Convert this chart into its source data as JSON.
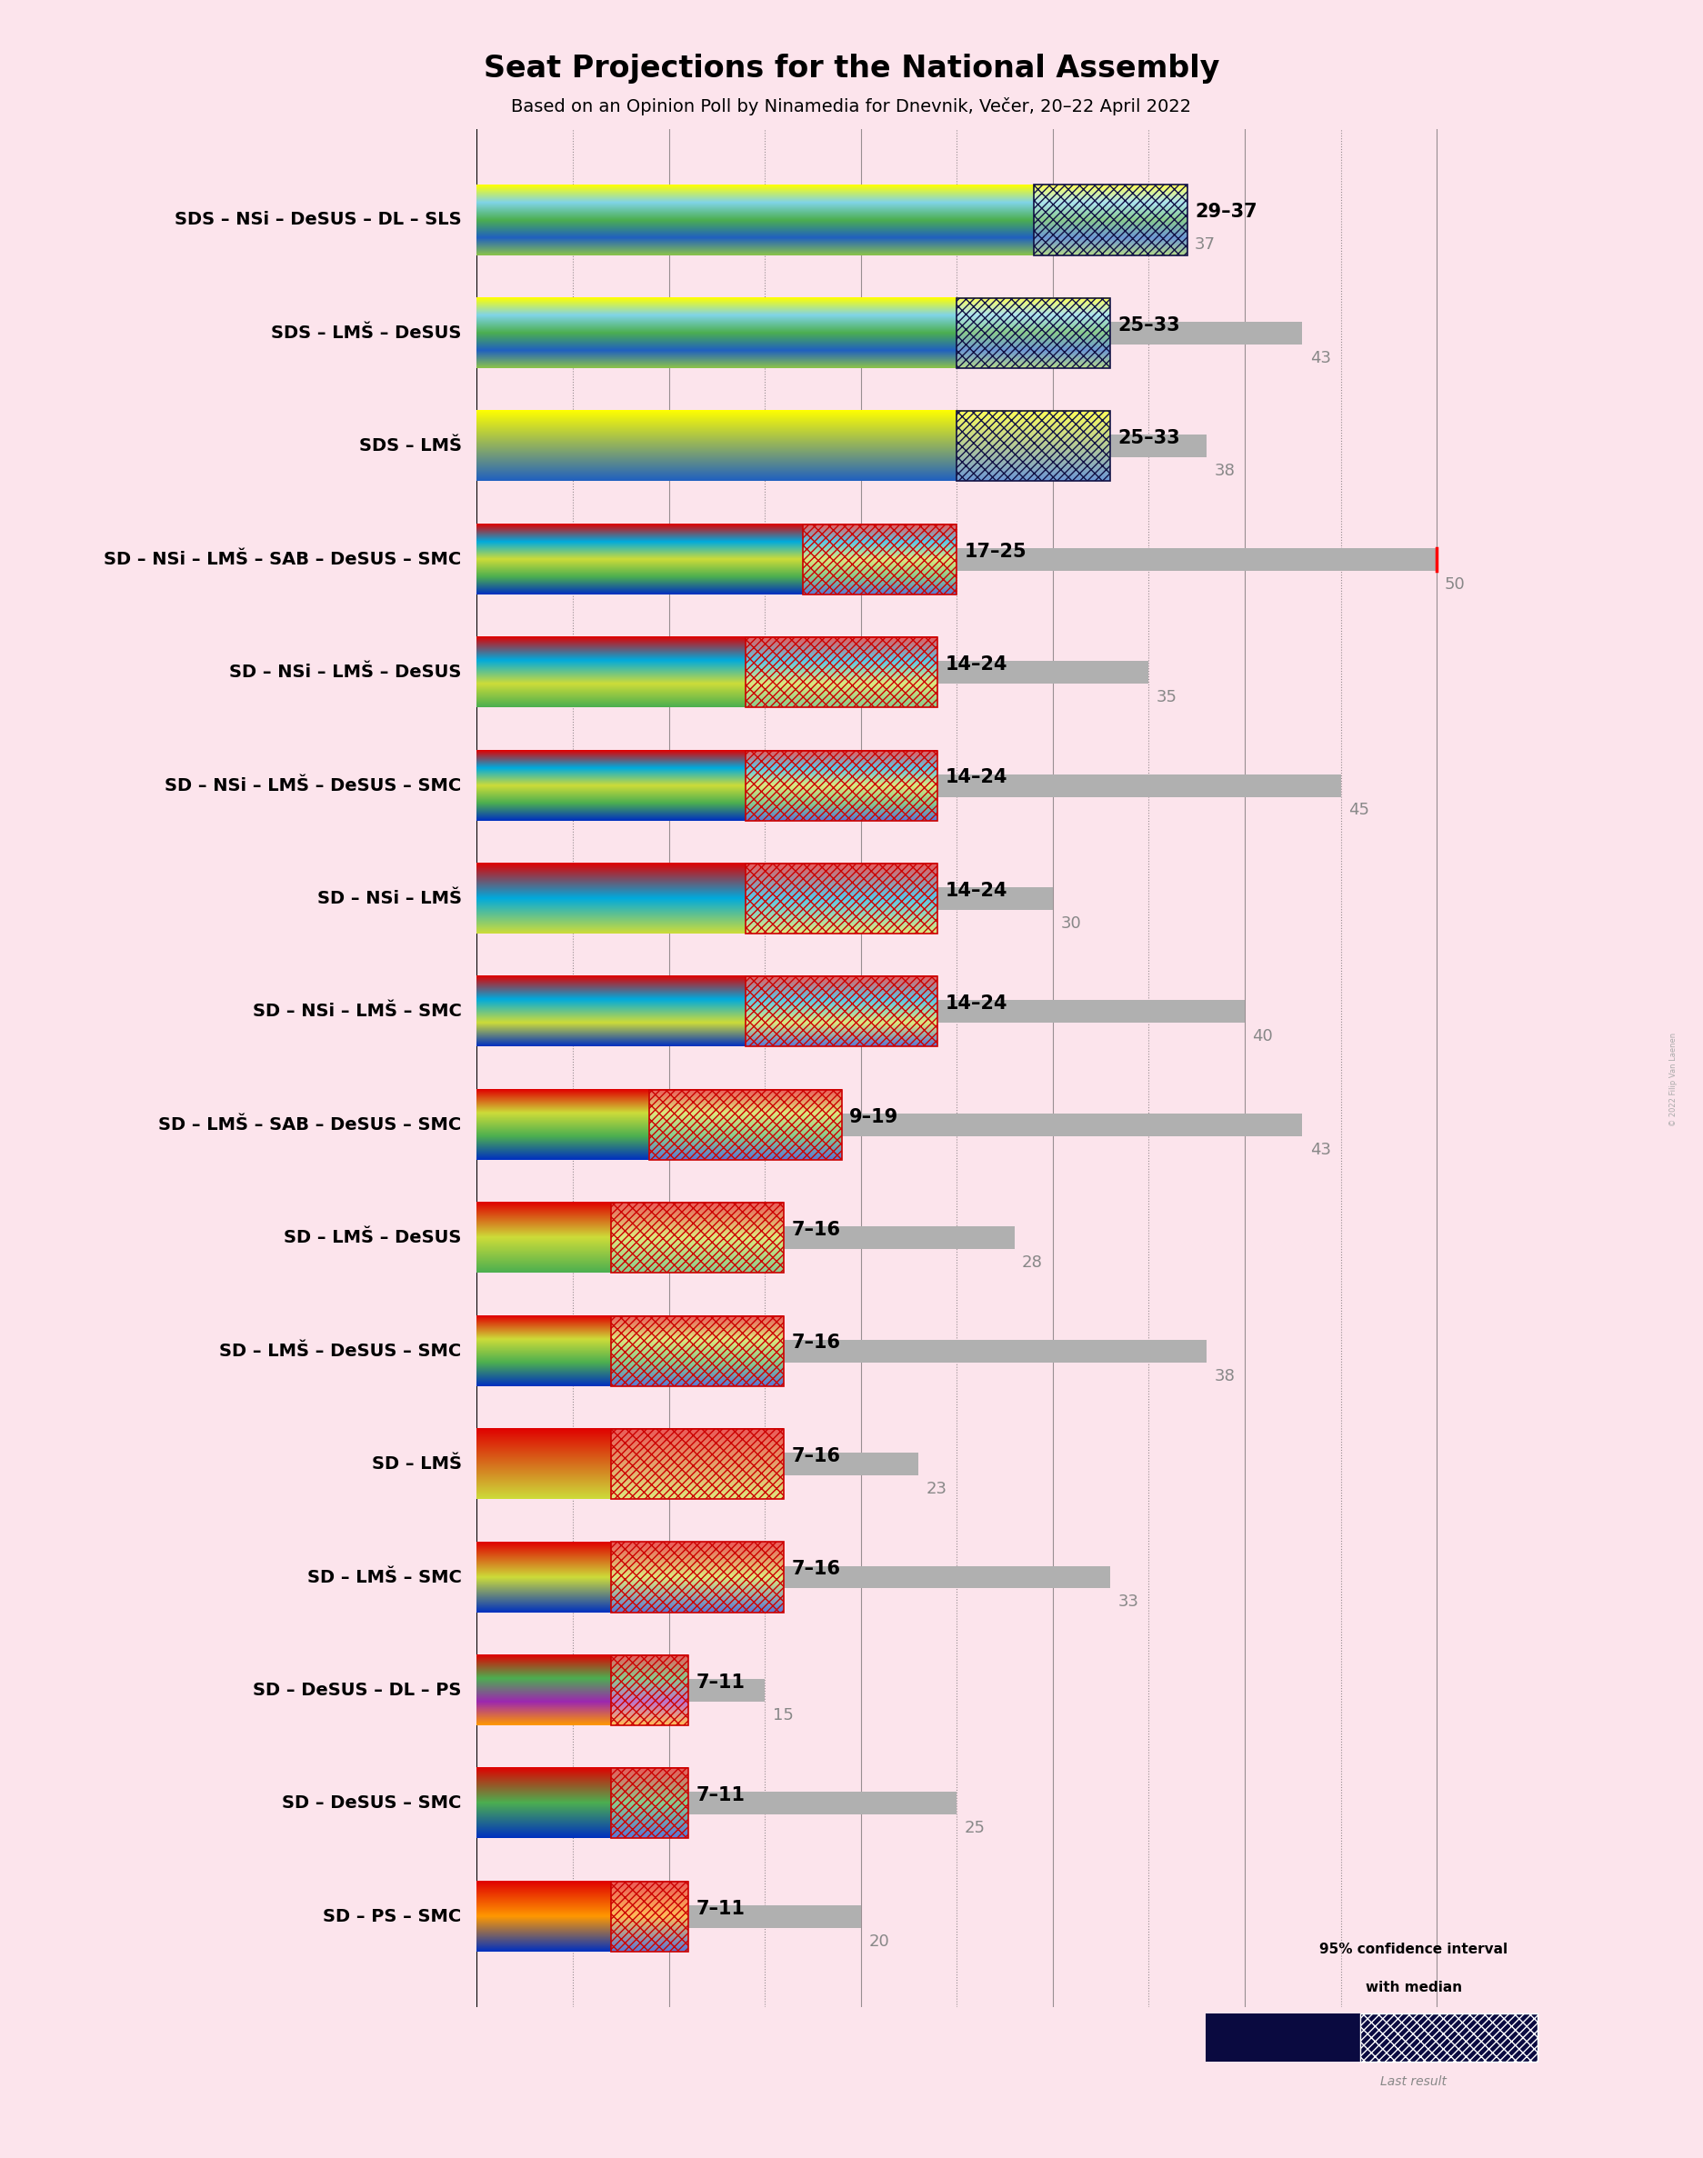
{
  "title": "Seat Projections for the National Assembly",
  "subtitle": "Based on an Opinion Poll by Ninamedia for Dnevnik, Večer, 20–22 April 2022",
  "background_color": "#fce4ec",
  "coalitions": [
    {
      "label": "SDS – NSi – DeSUS – DL – SLS",
      "low": 29,
      "high": 37,
      "last": 37,
      "colors": [
        "#ffff00",
        "#80d4e8",
        "#4caf50",
        "#2060c0",
        "#8bc34a"
      ],
      "hatch_edge": "#111144",
      "hatch": "xx//"
    },
    {
      "label": "SDS – LMŠ – DeSUS",
      "low": 25,
      "high": 33,
      "last": 43,
      "colors": [
        "#ffff00",
        "#80d4e8",
        "#4caf50",
        "#2060c0",
        "#8bc34a"
      ],
      "hatch_edge": "#111144",
      "hatch": "xx//"
    },
    {
      "label": "SDS – LMŠ",
      "low": 25,
      "high": 33,
      "last": 38,
      "colors": [
        "#ffff00",
        "#2060c0"
      ],
      "hatch_edge": "#111144",
      "hatch": "xx//"
    },
    {
      "label": "SD – NSi – LMŠ – SAB – DeSUS – SMC",
      "low": 17,
      "high": 25,
      "last": 50,
      "colors": [
        "#e00000",
        "#00aadd",
        "#cddc39",
        "#4caf50",
        "#0030c0"
      ],
      "hatch_edge": "#cc0000",
      "hatch": "xx//",
      "red_marker": true
    },
    {
      "label": "SD – NSi – LMŠ – DeSUS",
      "low": 14,
      "high": 24,
      "last": 35,
      "colors": [
        "#e00000",
        "#00aadd",
        "#cddc39",
        "#4caf50"
      ],
      "hatch_edge": "#cc0000",
      "hatch": "xx//"
    },
    {
      "label": "SD – NSi – LMŠ – DeSUS – SMC",
      "low": 14,
      "high": 24,
      "last": 45,
      "colors": [
        "#e00000",
        "#00aadd",
        "#cddc39",
        "#4caf50",
        "#0030c0"
      ],
      "hatch_edge": "#cc0000",
      "hatch": "xx//"
    },
    {
      "label": "SD – NSi – LMŠ",
      "low": 14,
      "high": 24,
      "last": 30,
      "colors": [
        "#e00000",
        "#00aadd",
        "#cddc39"
      ],
      "hatch_edge": "#cc0000",
      "hatch": "xx//"
    },
    {
      "label": "SD – NSi – LMŠ – SMC",
      "low": 14,
      "high": 24,
      "last": 40,
      "colors": [
        "#e00000",
        "#00aadd",
        "#cddc39",
        "#0030c0"
      ],
      "hatch_edge": "#cc0000",
      "hatch": "xx//"
    },
    {
      "label": "SD – LMŠ – SAB – DeSUS – SMC",
      "low": 9,
      "high": 19,
      "last": 43,
      "colors": [
        "#e00000",
        "#cddc39",
        "#4caf50",
        "#0030c0"
      ],
      "hatch_edge": "#cc0000",
      "hatch": "xx//"
    },
    {
      "label": "SD – LMŠ – DeSUS",
      "low": 7,
      "high": 16,
      "last": 28,
      "colors": [
        "#e00000",
        "#cddc39",
        "#4caf50"
      ],
      "hatch_edge": "#cc0000",
      "hatch": "xx//"
    },
    {
      "label": "SD – LMŠ – DeSUS – SMC",
      "low": 7,
      "high": 16,
      "last": 38,
      "colors": [
        "#e00000",
        "#cddc39",
        "#4caf50",
        "#0030c0"
      ],
      "hatch_edge": "#cc0000",
      "hatch": "xx//"
    },
    {
      "label": "SD – LMŠ",
      "low": 7,
      "high": 16,
      "last": 23,
      "colors": [
        "#e00000",
        "#cddc39"
      ],
      "hatch_edge": "#cc0000",
      "hatch": "xx//"
    },
    {
      "label": "SD – LMŠ – SMC",
      "low": 7,
      "high": 16,
      "last": 33,
      "colors": [
        "#e00000",
        "#cddc39",
        "#0030c0"
      ],
      "hatch_edge": "#cc0000",
      "hatch": "xx//"
    },
    {
      "label": "SD – DeSUS – DL – PS",
      "low": 7,
      "high": 11,
      "last": 15,
      "colors": [
        "#e00000",
        "#4caf50",
        "#9c27b0",
        "#ff9800"
      ],
      "hatch_edge": "#cc0000",
      "hatch": "xx//"
    },
    {
      "label": "SD – DeSUS – SMC",
      "low": 7,
      "high": 11,
      "last": 25,
      "colors": [
        "#e00000",
        "#4caf50",
        "#0030c0"
      ],
      "hatch_edge": "#cc0000",
      "hatch": "xx//"
    },
    {
      "label": "SD – PS – SMC",
      "low": 7,
      "high": 11,
      "last": 20,
      "colors": [
        "#e00000",
        "#ff9800",
        "#0030c0"
      ],
      "hatch_edge": "#cc0000",
      "hatch": "xx//"
    }
  ],
  "x_max": 55,
  "tick_positions": [
    0,
    5,
    10,
    15,
    20,
    25,
    30,
    35,
    40,
    45,
    50
  ],
  "gray_bar_color": "#b0b0b0",
  "label_fontsize": 14,
  "range_fontsize": 15,
  "last_fontsize": 13,
  "title_fontsize": 24,
  "subtitle_fontsize": 14
}
